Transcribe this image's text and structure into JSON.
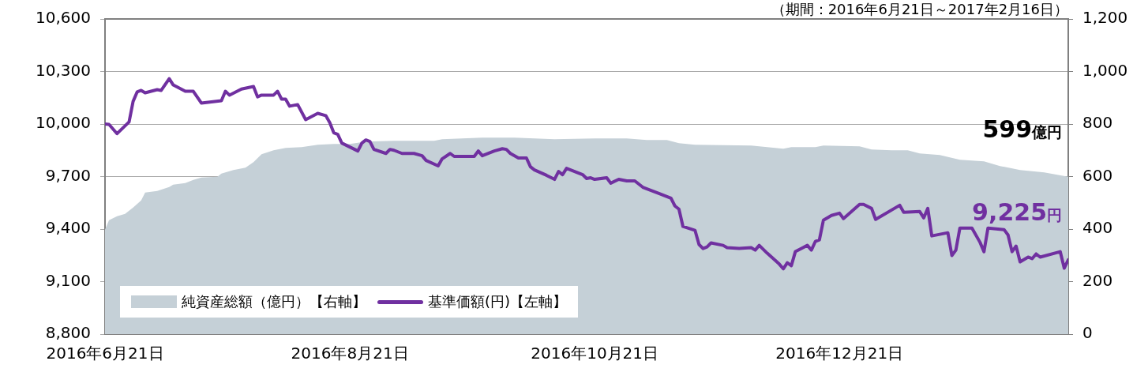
{
  "chart_data": {
    "type": "line",
    "subtitle": "（期間：2016年6月21日～2017年2月16日）",
    "xlim": [
      "2016-06-21",
      "2017-02-16"
    ],
    "xticks": [
      {
        "value": "2016-06-21",
        "label": "2016年6月21日"
      },
      {
        "value": "2016-08-21",
        "label": "2016年8月21日"
      },
      {
        "value": "2016-10-21",
        "label": "2016年10月21日"
      },
      {
        "value": "2016-12-21",
        "label": "2016年12月21日"
      }
    ],
    "ylim": [
      8800,
      10600
    ],
    "yticks": [
      {
        "value": 8800,
        "label": "8,800"
      },
      {
        "value": 9100,
        "label": "9,100"
      },
      {
        "value": 9400,
        "label": "9,400"
      },
      {
        "value": 9700,
        "label": "9,700"
      },
      {
        "value": 10000,
        "label": "10,000"
      },
      {
        "value": 10300,
        "label": "10,300"
      },
      {
        "value": 10600,
        "label": "10,600"
      }
    ],
    "y2lim": [
      0,
      1200
    ],
    "y2ticks": [
      0,
      200,
      400,
      600,
      800,
      {
        "value": 1000,
        "label": "1,000"
      },
      {
        "value": 1200,
        "label": "1,200"
      }
    ],
    "grid": "y",
    "legend": "bottom left",
    "marker": "none",
    "annotations": [
      "599億円",
      "9,225円"
    ],
    "series": [
      {
        "name": "純資産総額（億円）【右軸】",
        "type": "area",
        "axis": "y2",
        "color": "#c5d0d7",
        "x": [
          "2016-06-21",
          "2016-06-22",
          "2016-06-24",
          "2016-06-26",
          "2016-06-28",
          "2016-06-30",
          "2016-07-01",
          "2016-07-04",
          "2016-07-07",
          "2016-07-08",
          "2016-07-11",
          "2016-07-13",
          "2016-07-15",
          "2016-07-19",
          "2016-07-20",
          "2016-07-23",
          "2016-07-26",
          "2016-07-28",
          "2016-07-30",
          "2016-08-02",
          "2016-08-05",
          "2016-08-09",
          "2016-08-13",
          "2016-08-17",
          "2016-08-21",
          "2016-08-25",
          "2016-09-01",
          "2016-09-11",
          "2016-09-13",
          "2016-09-23",
          "2016-10-01",
          "2016-10-11",
          "2016-10-21",
          "2016-10-29",
          "2016-11-03",
          "2016-11-08",
          "2016-11-11",
          "2016-11-15",
          "2016-11-29",
          "2016-12-07",
          "2016-12-09",
          "2016-12-15",
          "2016-12-17",
          "2016-12-26",
          "2016-12-29",
          "2017-01-03",
          "2017-01-07",
          "2017-01-10",
          "2017-01-15",
          "2017-01-20",
          "2017-01-26",
          "2017-01-30",
          "2017-02-04",
          "2017-02-10",
          "2017-02-16"
        ],
        "values": [
          398,
          434,
          449,
          458,
          482,
          509,
          539,
          545,
          560,
          569,
          575,
          587,
          596,
          599,
          611,
          625,
          634,
          655,
          685,
          700,
          709,
          712,
          721,
          724,
          724,
          733,
          736,
          736,
          742,
          748,
          748,
          742,
          745,
          745,
          739,
          739,
          727,
          721,
          718,
          706,
          712,
          712,
          718,
          715,
          703,
          700,
          700,
          688,
          682,
          664,
          658,
          640,
          625,
          616,
          599
        ]
      },
      {
        "name": "基準価額(円)【左軸】",
        "type": "line",
        "axis": "y",
        "color": "#7030a0",
        "x": [
          "2016-06-21",
          "2016-06-22",
          "2016-06-24",
          "2016-06-27",
          "2016-06-28",
          "2016-06-29",
          "2016-06-30",
          "2016-07-01",
          "2016-07-04",
          "2016-07-05",
          "2016-07-07",
          "2016-07-08",
          "2016-07-11",
          "2016-07-13",
          "2016-07-15",
          "2016-07-20",
          "2016-07-21",
          "2016-07-22",
          "2016-07-25",
          "2016-07-28",
          "2016-07-29",
          "2016-07-30",
          "2016-08-02",
          "2016-08-03",
          "2016-08-04",
          "2016-08-05",
          "2016-08-06",
          "2016-08-08",
          "2016-08-10",
          "2016-08-13",
          "2016-08-15",
          "2016-08-16",
          "2016-08-17",
          "2016-08-18",
          "2016-08-19",
          "2016-08-23",
          "2016-08-24",
          "2016-08-25",
          "2016-08-26",
          "2016-08-27",
          "2016-08-30",
          "2016-08-31",
          "2016-09-01",
          "2016-09-03",
          "2016-09-06",
          "2016-09-08",
          "2016-09-09",
          "2016-09-12",
          "2016-09-13",
          "2016-09-15",
          "2016-09-16",
          "2016-09-21",
          "2016-09-22",
          "2016-09-23",
          "2016-09-26",
          "2016-09-28",
          "2016-09-29",
          "2016-09-30",
          "2016-10-02",
          "2016-10-04",
          "2016-10-05",
          "2016-10-06",
          "2016-10-09",
          "2016-10-11",
          "2016-10-12",
          "2016-10-13",
          "2016-10-14",
          "2016-10-16",
          "2016-10-18",
          "2016-10-19",
          "2016-10-20",
          "2016-10-21",
          "2016-10-24",
          "2016-10-25",
          "2016-10-27",
          "2016-10-29",
          "2016-10-31",
          "2016-11-02",
          "2016-11-06",
          "2016-11-09",
          "2016-11-10",
          "2016-11-11",
          "2016-11-12",
          "2016-11-15",
          "2016-11-16",
          "2016-11-17",
          "2016-11-18",
          "2016-11-19",
          "2016-11-22",
          "2016-11-23",
          "2016-11-26",
          "2016-11-29",
          "2016-11-30",
          "2016-12-01",
          "2016-12-03",
          "2016-12-06",
          "2016-12-07",
          "2016-12-08",
          "2016-12-09",
          "2016-12-10",
          "2016-12-13",
          "2016-12-14",
          "2016-12-15",
          "2016-12-16",
          "2016-12-17",
          "2016-12-19",
          "2016-12-21",
          "2016-12-22",
          "2016-12-26",
          "2016-12-27",
          "2016-12-29",
          "2016-12-30",
          "2017-01-05",
          "2017-01-06",
          "2017-01-10",
          "2017-01-11",
          "2017-01-12",
          "2017-01-13",
          "2017-01-17",
          "2017-01-18",
          "2017-01-19",
          "2017-01-20",
          "2017-01-23",
          "2017-01-25",
          "2017-01-26",
          "2017-01-27",
          "2017-01-31",
          "2017-02-01",
          "2017-02-02",
          "2017-02-03",
          "2017-02-04",
          "2017-02-06",
          "2017-02-07",
          "2017-02-08",
          "2017-02-09",
          "2017-02-14",
          "2017-02-15",
          "2017-02-16"
        ],
        "values": [
          10000,
          9998,
          9945,
          10012,
          10129,
          10183,
          10192,
          10178,
          10196,
          10192,
          10259,
          10223,
          10187,
          10187,
          10120,
          10133,
          10187,
          10165,
          10200,
          10214,
          10155,
          10165,
          10165,
          10187,
          10142,
          10142,
          10102,
          10111,
          10025,
          10061,
          10048,
          10008,
          9950,
          9941,
          9891,
          9846,
          9891,
          9909,
          9900,
          9855,
          9832,
          9855,
          9850,
          9832,
          9832,
          9819,
          9792,
          9761,
          9801,
          9832,
          9815,
          9815,
          9846,
          9819,
          9846,
          9859,
          9855,
          9832,
          9806,
          9806,
          9756,
          9738,
          9707,
          9684,
          9729,
          9711,
          9747,
          9729,
          9711,
          9689,
          9693,
          9684,
          9693,
          9662,
          9684,
          9675,
          9675,
          9639,
          9604,
          9577,
          9532,
          9514,
          9415,
          9393,
          9312,
          9289,
          9298,
          9321,
          9307,
          9294,
          9289,
          9294,
          9280,
          9307,
          9262,
          9200,
          9173,
          9208,
          9191,
          9271,
          9307,
          9280,
          9330,
          9339,
          9451,
          9478,
          9491,
          9460,
          9541,
          9541,
          9518,
          9455,
          9536,
          9496,
          9500,
          9464,
          9518,
          9361,
          9379,
          9249,
          9280,
          9406,
          9406,
          9325,
          9271,
          9406,
          9397,
          9366,
          9271,
          9303,
          9213,
          9240,
          9231,
          9258,
          9240,
          9271,
          9177,
          9225
        ]
      }
    ]
  }
}
